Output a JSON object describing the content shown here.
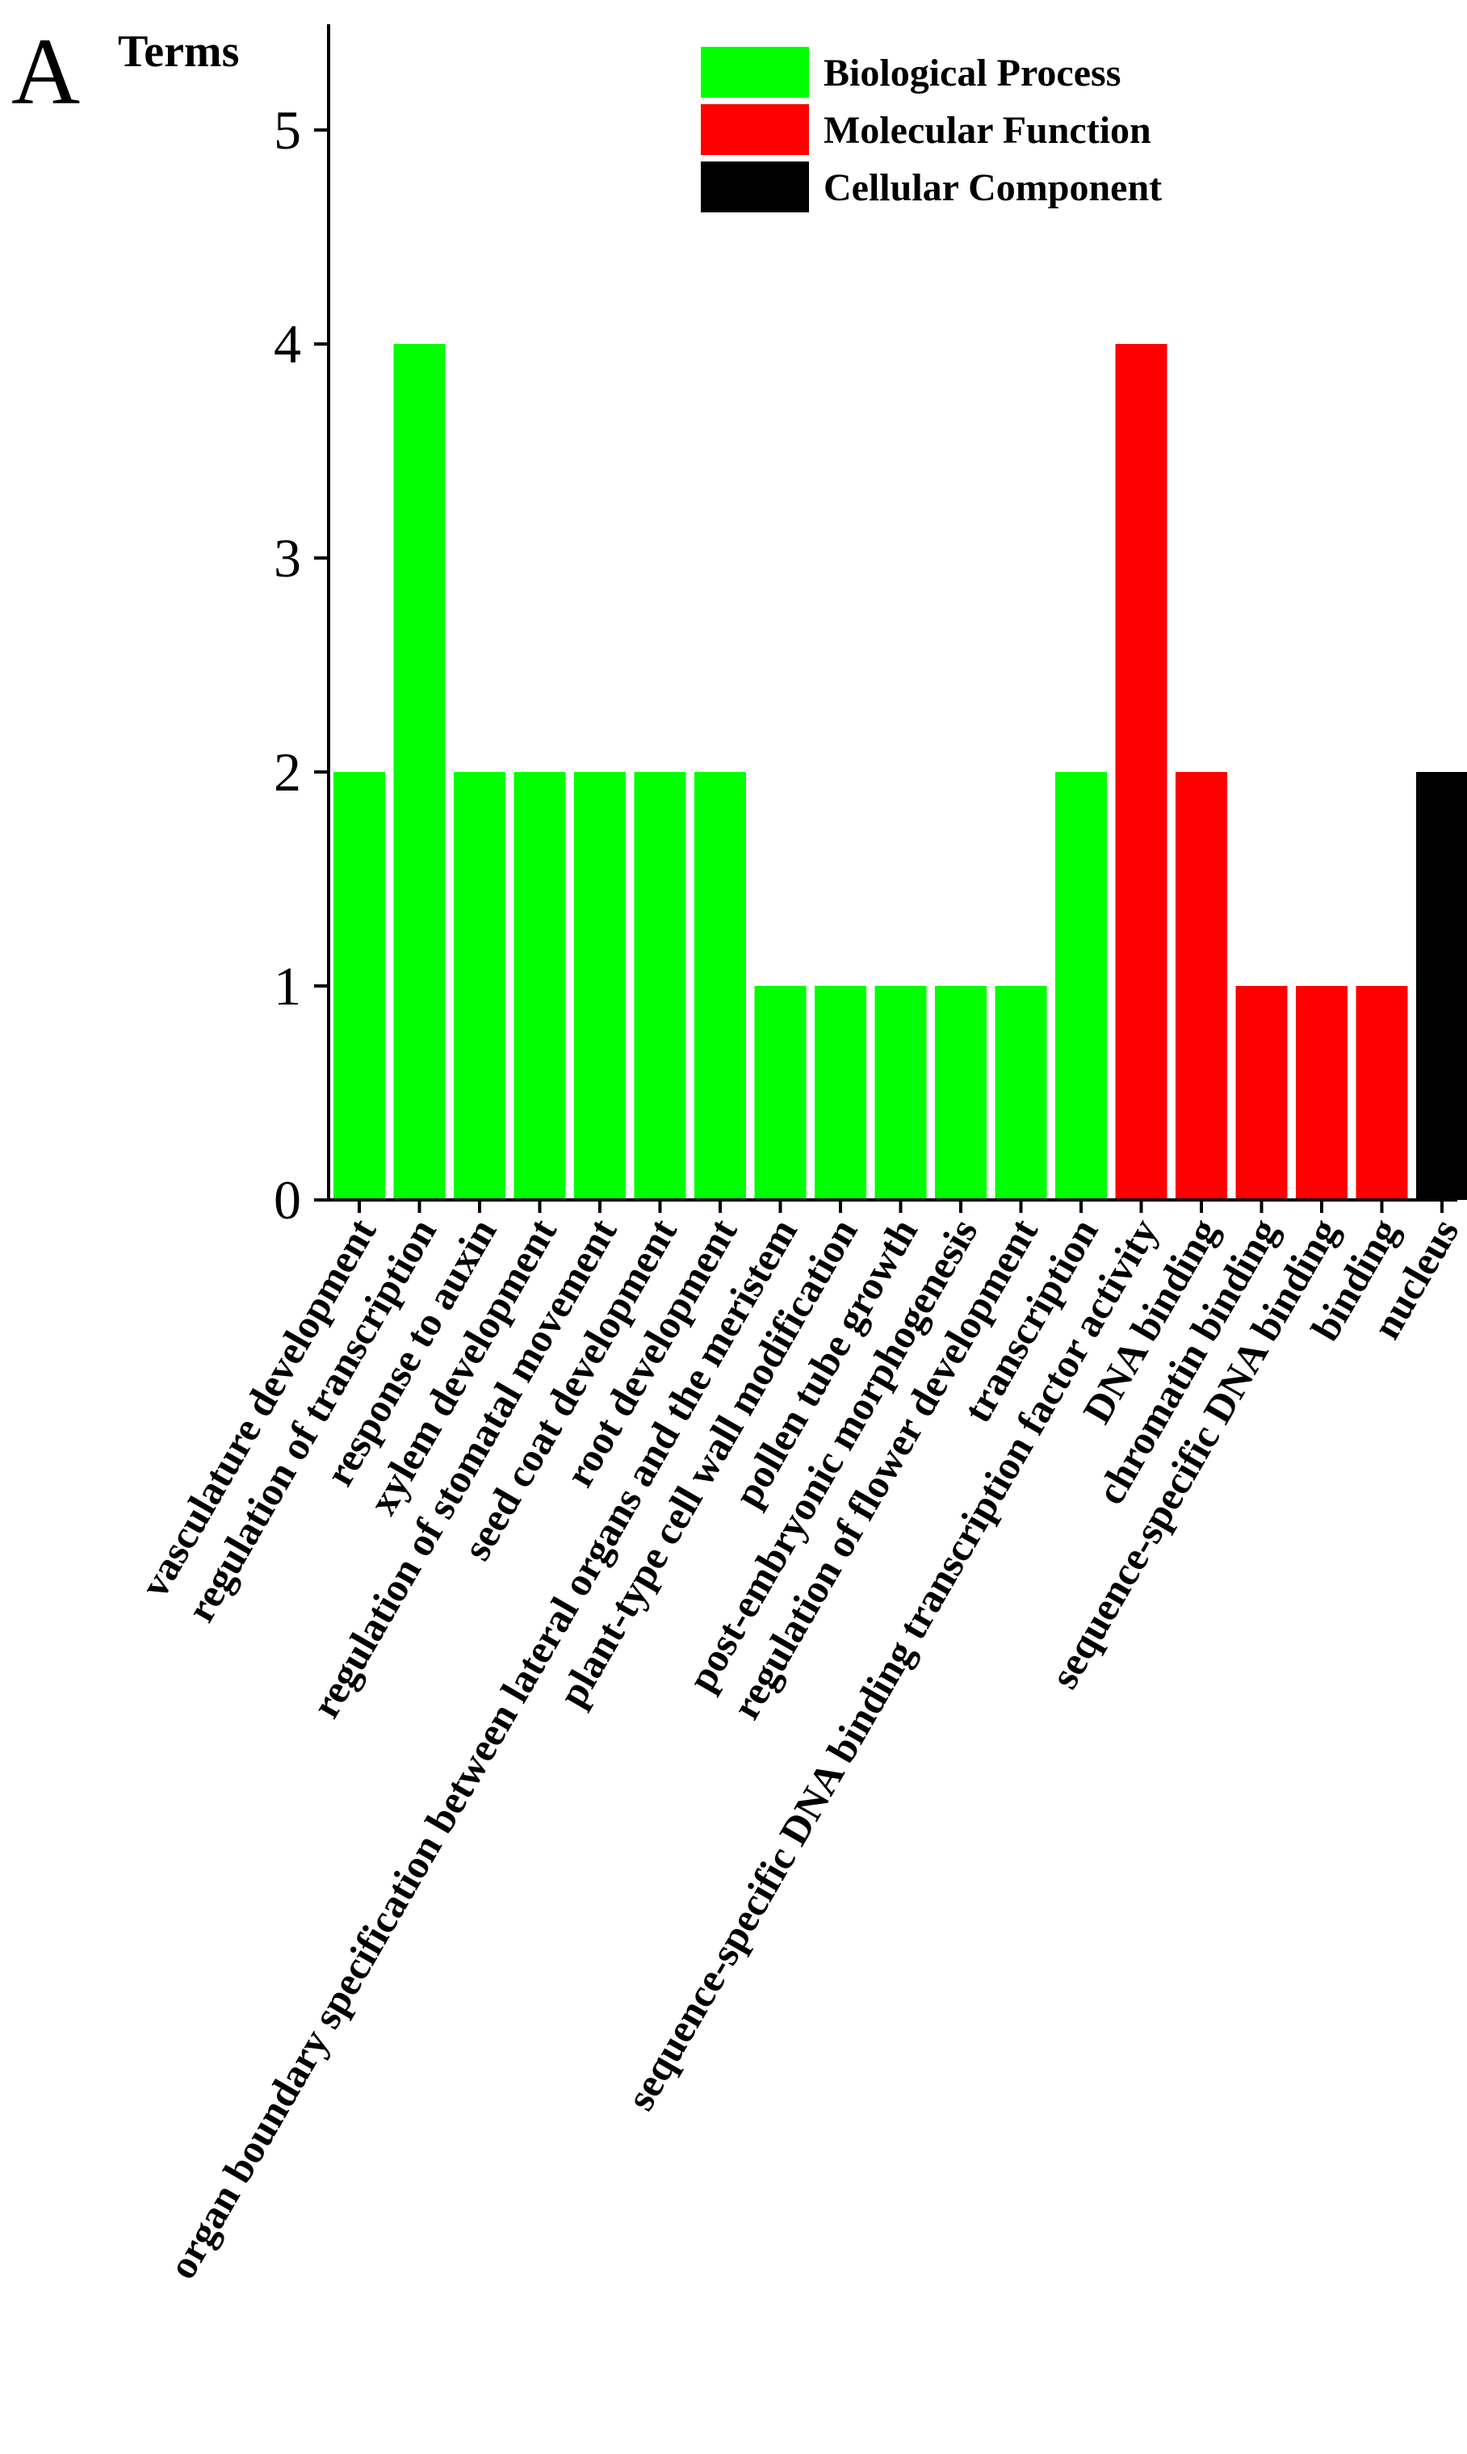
{
  "panel_label": "A",
  "chart_data": {
    "type": "bar",
    "title": "",
    "xlabel": "",
    "ylabel": "Terms",
    "ylim": [
      0,
      5.5
    ],
    "yticks": [
      0,
      1,
      2,
      3,
      4,
      5
    ],
    "grid": false,
    "legend_position": "top-right",
    "legend": [
      {
        "name": "Biological Process",
        "color": "#00ff00"
      },
      {
        "name": "Molecular Function",
        "color": "#ff0000"
      },
      {
        "name": "Cellular Component",
        "color": "#000000"
      }
    ],
    "categories": [
      "vasculature development",
      "regulation of transcription",
      "response to auxin",
      "xylem development",
      "regulation of stomatal movement",
      "seed coat development",
      "root development",
      "organ boundary specification between lateral organs and the meristem",
      "plant-type cell wall modification",
      "pollen tube growth",
      "post-embryonic morphogenesis",
      "regulation of flower development",
      "transcription",
      "sequence-specific DNA binding transcription factor activity",
      "DNA binding",
      "chromatin binding",
      "sequence-specific DNA binding",
      "binding",
      "nucleus"
    ],
    "values": [
      2,
      4,
      2,
      2,
      2,
      2,
      2,
      1,
      1,
      1,
      1,
      1,
      2,
      4,
      2,
      1,
      1,
      1,
      2
    ],
    "groups": [
      0,
      0,
      0,
      0,
      0,
      0,
      0,
      0,
      0,
      0,
      0,
      0,
      0,
      1,
      1,
      1,
      1,
      1,
      2
    ]
  }
}
